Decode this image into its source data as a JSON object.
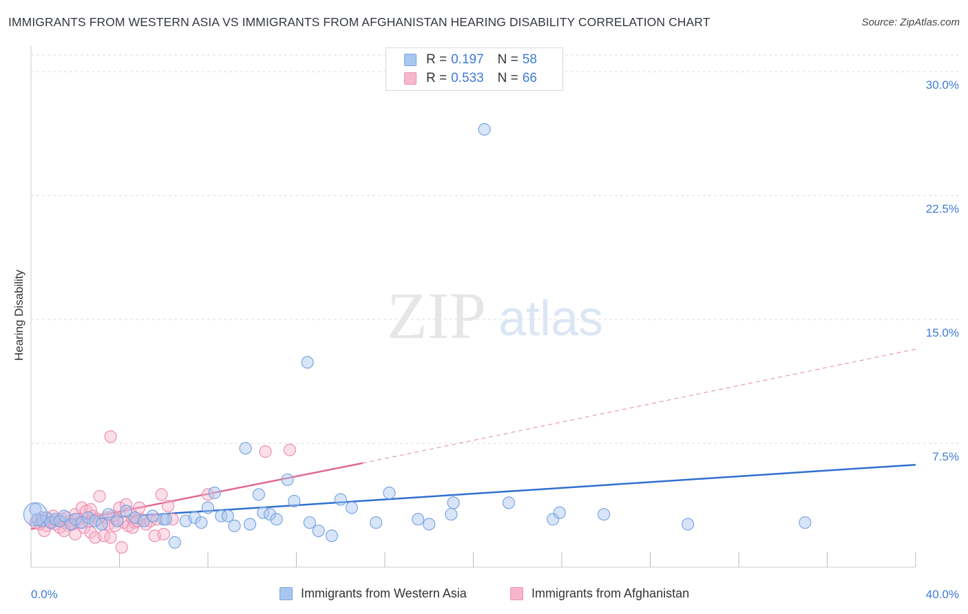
{
  "title": "IMMIGRANTS FROM WESTERN ASIA VS IMMIGRANTS FROM AFGHANISTAN HEARING DISABILITY CORRELATION CHART",
  "source": "Source: ZipAtlas.com",
  "watermark": {
    "zip": "ZIP",
    "atlas": "atlas"
  },
  "colors": {
    "blue_fill": "#a9c6ef",
    "blue_stroke": "#7aa4e0",
    "blue_line": "#2f6fcf",
    "pink_fill": "#f7b7cb",
    "pink_stroke": "#ec8fb0",
    "pink_line": "#e0678f",
    "axis_text": "#3d7ad6",
    "grid": "#dcdcdc"
  },
  "legend": {
    "rows": [
      {
        "r_label": "R =",
        "r_value": "0.197",
        "n_label": "N =",
        "n_value": "58",
        "color": "#a9c6ef"
      },
      {
        "r_label": "R =",
        "r_value": "0.533",
        "n_label": "N =",
        "n_value": "66",
        "color": "#f7b7cb"
      }
    ]
  },
  "bottom_legend": [
    {
      "label": "Immigrants from Western Asia",
      "color": "#a9c6ef"
    },
    {
      "label": "Immigrants from Afghanistan",
      "color": "#f7b7cb"
    }
  ],
  "chart_data": {
    "type": "scatter",
    "title": "IMMIGRANTS FROM WESTERN ASIA VS IMMIGRANTS FROM AFGHANISTAN HEARING DISABILITY CORRELATION CHART",
    "xlabel": "",
    "ylabel": "Hearing Disability",
    "xlim": [
      0,
      40
    ],
    "ylim": [
      0,
      31
    ],
    "x_tick_labels": [
      {
        "value": 0,
        "label": "0.0%"
      },
      {
        "value": 40,
        "label": "40.0%"
      }
    ],
    "y_tick_labels": [
      {
        "value": 7.5,
        "label": "7.5%"
      },
      {
        "value": 15,
        "label": "15.0%"
      },
      {
        "value": 22.5,
        "label": "22.5%"
      },
      {
        "value": 30,
        "label": "30.0%"
      }
    ],
    "x_minor_ticks": [
      4,
      8,
      12,
      16,
      20,
      24,
      28,
      32,
      36
    ],
    "series": [
      {
        "name": "Immigrants from Western Asia",
        "color": "#a9c6ef",
        "points": [
          [
            0.3,
            2.9
          ],
          [
            0.5,
            2.8
          ],
          [
            0.7,
            3.0
          ],
          [
            0.9,
            2.7
          ],
          [
            1.1,
            2.9
          ],
          [
            1.3,
            2.8
          ],
          [
            1.5,
            3.1
          ],
          [
            1.8,
            2.6
          ],
          [
            2.0,
            2.9
          ],
          [
            2.3,
            2.7
          ],
          [
            2.6,
            3.0
          ],
          [
            2.9,
            2.8
          ],
          [
            3.2,
            2.6
          ],
          [
            3.5,
            3.2
          ],
          [
            3.9,
            2.8
          ],
          [
            4.3,
            3.4
          ],
          [
            4.7,
            3.0
          ],
          [
            5.1,
            2.8
          ],
          [
            5.5,
            3.1
          ],
          [
            6.0,
            2.9
          ],
          [
            6.5,
            1.5
          ],
          [
            7.0,
            2.8
          ],
          [
            7.4,
            3.0
          ],
          [
            7.7,
            2.7
          ],
          [
            8.0,
            3.6
          ],
          [
            8.3,
            4.5
          ],
          [
            8.6,
            3.1
          ],
          [
            8.9,
            3.1
          ],
          [
            9.2,
            2.5
          ],
          [
            9.9,
            2.6
          ],
          [
            10.3,
            4.4
          ],
          [
            10.5,
            3.3
          ],
          [
            10.8,
            3.2
          ],
          [
            11.1,
            2.9
          ],
          [
            11.6,
            5.3
          ],
          [
            11.9,
            4.0
          ],
          [
            12.6,
            2.7
          ],
          [
            13.0,
            2.2
          ],
          [
            13.6,
            1.9
          ],
          [
            14.0,
            4.1
          ],
          [
            14.5,
            3.6
          ],
          [
            15.6,
            2.7
          ],
          [
            16.2,
            4.5
          ],
          [
            17.5,
            2.9
          ],
          [
            18.0,
            2.6
          ],
          [
            19.0,
            3.2
          ],
          [
            19.1,
            3.9
          ],
          [
            21.6,
            3.9
          ],
          [
            23.6,
            2.9
          ],
          [
            23.9,
            3.3
          ],
          [
            25.9,
            3.2
          ],
          [
            29.7,
            2.6
          ],
          [
            35.0,
            2.7
          ],
          [
            12.5,
            12.4
          ],
          [
            20.5,
            26.5
          ],
          [
            0.2,
            3.5
          ],
          [
            9.7,
            7.2
          ],
          [
            6.1,
            2.9
          ]
        ],
        "trend": {
          "x": [
            0,
            40
          ],
          "y": [
            2.7,
            6.2
          ],
          "style": "solid"
        }
      },
      {
        "name": "Immigrants from Afghanistan",
        "color": "#f7b7cb",
        "points": [
          [
            0.2,
            2.7
          ],
          [
            0.3,
            2.9
          ],
          [
            0.4,
            2.6
          ],
          [
            0.5,
            3.0
          ],
          [
            0.6,
            2.8
          ],
          [
            0.7,
            2.5
          ],
          [
            0.8,
            2.9
          ],
          [
            0.9,
            2.7
          ],
          [
            1.0,
            3.1
          ],
          [
            1.1,
            2.6
          ],
          [
            1.2,
            2.8
          ],
          [
            1.3,
            2.4
          ],
          [
            1.4,
            2.9
          ],
          [
            1.5,
            2.7
          ],
          [
            1.6,
            3.0
          ],
          [
            1.7,
            2.5
          ],
          [
            1.8,
            2.8
          ],
          [
            1.9,
            2.6
          ],
          [
            2.0,
            3.2
          ],
          [
            2.1,
            2.9
          ],
          [
            2.2,
            2.7
          ],
          [
            2.3,
            3.6
          ],
          [
            2.4,
            2.4
          ],
          [
            2.5,
            3.4
          ],
          [
            2.6,
            2.8
          ],
          [
            2.7,
            2.1
          ],
          [
            2.8,
            3.1
          ],
          [
            2.9,
            1.8
          ],
          [
            3.0,
            2.9
          ],
          [
            3.1,
            4.3
          ],
          [
            3.2,
            2.6
          ],
          [
            3.3,
            1.9
          ],
          [
            3.4,
            3.0
          ],
          [
            3.5,
            2.6
          ],
          [
            3.6,
            1.8
          ],
          [
            3.7,
            3.1
          ],
          [
            3.8,
            2.5
          ],
          [
            3.9,
            2.9
          ],
          [
            4.0,
            3.6
          ],
          [
            4.1,
            1.2
          ],
          [
            4.2,
            2.7
          ],
          [
            4.3,
            3.8
          ],
          [
            4.4,
            2.5
          ],
          [
            4.5,
            3.3
          ],
          [
            4.6,
            2.9
          ],
          [
            4.7,
            2.7
          ],
          [
            4.9,
            3.6
          ],
          [
            5.0,
            2.9
          ],
          [
            5.2,
            2.6
          ],
          [
            5.4,
            2.8
          ],
          [
            5.6,
            1.9
          ],
          [
            5.7,
            2.9
          ],
          [
            5.9,
            4.4
          ],
          [
            6.0,
            2.0
          ],
          [
            6.2,
            3.7
          ],
          [
            6.4,
            2.9
          ],
          [
            1.5,
            2.2
          ],
          [
            2.0,
            2.0
          ],
          [
            4.6,
            2.4
          ],
          [
            3.6,
            7.9
          ],
          [
            10.6,
            7.0
          ],
          [
            11.7,
            7.1
          ],
          [
            8.0,
            4.4
          ],
          [
            0.6,
            2.2
          ],
          [
            4.8,
            2.8
          ],
          [
            2.7,
            3.5
          ]
        ],
        "trend": {
          "x": [
            0,
            15
          ],
          "y": [
            2.3,
            6.3
          ],
          "style": "solid",
          "extension": {
            "x": [
              15,
              40
            ],
            "y": [
              6.3,
              13.2
            ],
            "style": "dashed"
          }
        }
      }
    ]
  }
}
